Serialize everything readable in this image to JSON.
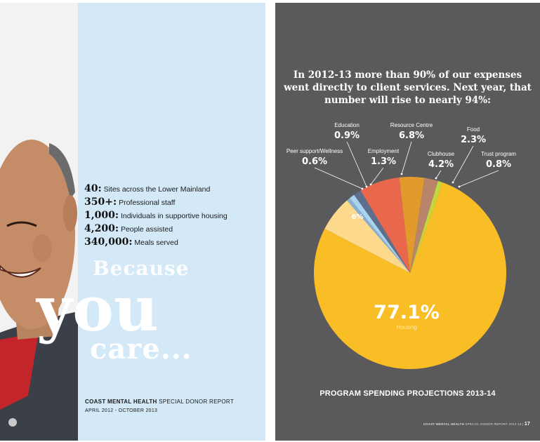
{
  "left_page": {
    "stats": [
      {
        "number": "40",
        "label": "Sites across the Lower Mainland"
      },
      {
        "number": "350+",
        "label": "Professional staff"
      },
      {
        "number": "1,000",
        "label": "Individuals in supportive housing"
      },
      {
        "number": "4,200",
        "label": "People assisted"
      },
      {
        "number": "340,000",
        "label": "Meals served"
      }
    ],
    "tagline": {
      "line1": "Because",
      "line2": "you",
      "line3": "care..."
    },
    "org_name": "COAST MENTAL HEALTH",
    "report_name": "SPECIAL DONOR REPORT",
    "date_range": "APRIL 2012 - OCTOBER 2013"
  },
  "right_page": {
    "headline": "In 2012-13 more than 90% of our expenses went directly to client services. Next year, that number will rise to nearly 94%:",
    "footer_org": "COAST MENTAL HEALTH",
    "footer_report": "SPECIAL DONOR REPORT 2012-13",
    "page_number": "17"
  },
  "chart_data": {
    "type": "pie",
    "title": "PROGRAM SPENDING PROJECTIONS 2013-14",
    "slices": [
      {
        "label": "Housing",
        "value": 77.1,
        "display": "77.1%",
        "color": "#f9bd25"
      },
      {
        "label": "",
        "value": 6.0,
        "display": "6%",
        "color": "#fcd98c"
      },
      {
        "label": "Peer support/Wellness",
        "value": 0.6,
        "display": "0.6%",
        "color": "#8aaed0"
      },
      {
        "label": "Education",
        "value": 0.9,
        "display": "0.9%",
        "color": "#a9d4f0"
      },
      {
        "label": "Employment",
        "value": 1.3,
        "display": "1.3%",
        "color": "#5d6f8c"
      },
      {
        "label": "Resource Centre",
        "value": 6.8,
        "display": "6.8%",
        "color": "#e9674d"
      },
      {
        "label": "Clubhouse",
        "value": 4.2,
        "display": "4.2%",
        "color": "#e39a2d"
      },
      {
        "label": "Food",
        "value": 2.3,
        "display": "2.3%",
        "color": "#b8846a"
      },
      {
        "label": "Trust program",
        "value": 0.8,
        "display": "0.8%",
        "color": "#c3d83f"
      }
    ]
  },
  "colors": {
    "left_background": "#d3e9f8",
    "right_background": "#5a5a5c",
    "text_dark": "#111111",
    "text_light": "#ffffff"
  }
}
